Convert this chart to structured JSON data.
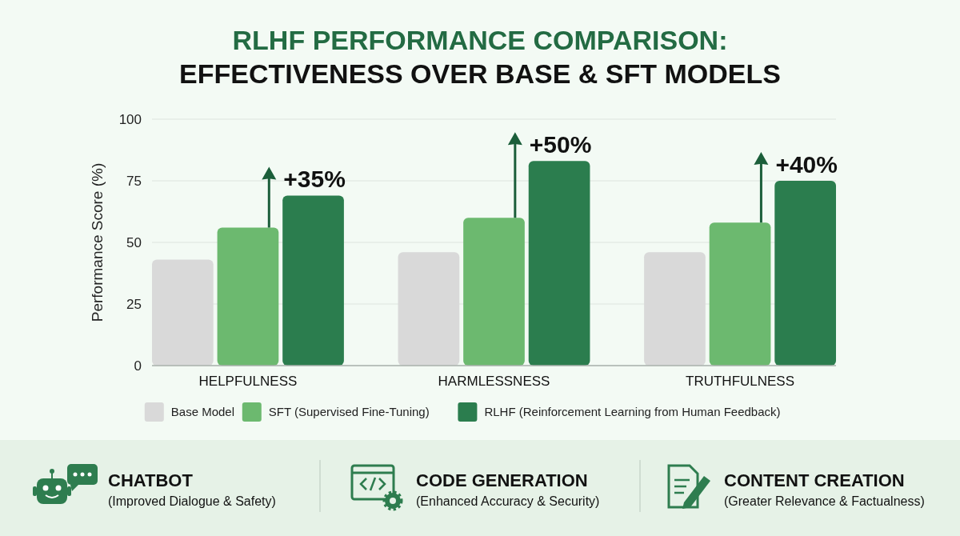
{
  "chart_data": [
    {
      "type": "bar",
      "title": "RLHF PERFORMANCE COMPARISON:",
      "subtitle": "EFFECTIVENESS OVER BASE & SFT MODELS",
      "ylabel": "Performance Score (%)",
      "categories": [
        "HELPFULNESS",
        "HARMLESSNESS",
        "TRUTHFULNESS"
      ],
      "series": [
        {
          "name": "Base Model",
          "color": "#d9d9d9",
          "values": [
            43,
            46,
            46
          ]
        },
        {
          "name": "SFT (Supervised Fine-Tuning)",
          "color": "#6cb96f",
          "values": [
            56,
            60,
            58
          ]
        },
        {
          "name": "RLHF (Reinforcement Learning from Human Feedback)",
          "color": "#2b7d4e",
          "values": [
            69,
            83,
            75
          ]
        }
      ],
      "ylim": [
        0,
        100
      ],
      "yticks": [
        0,
        25,
        50,
        75,
        100
      ],
      "grid": "y",
      "legend": "bottom",
      "annotations": [
        {
          "text": "+35%",
          "x": "HELPFULNESS",
          "y": 56
        },
        {
          "text": "+50%",
          "x": "HARMLESSNESS",
          "y": 60
        },
        {
          "text": "+40%",
          "x": "TRUTHFULNESS",
          "y": 58
        }
      ]
    },
    {
      "type": "other",
      "annotations": [
        "CHATBOT",
        "(Improved Dialogue & Safety)",
        "CODE GENERATION",
        "(Enhanced Accuracy & Security)",
        "CONTENT CREATION",
        "(Greater Relevance & Factualness)"
      ]
    }
  ]
}
